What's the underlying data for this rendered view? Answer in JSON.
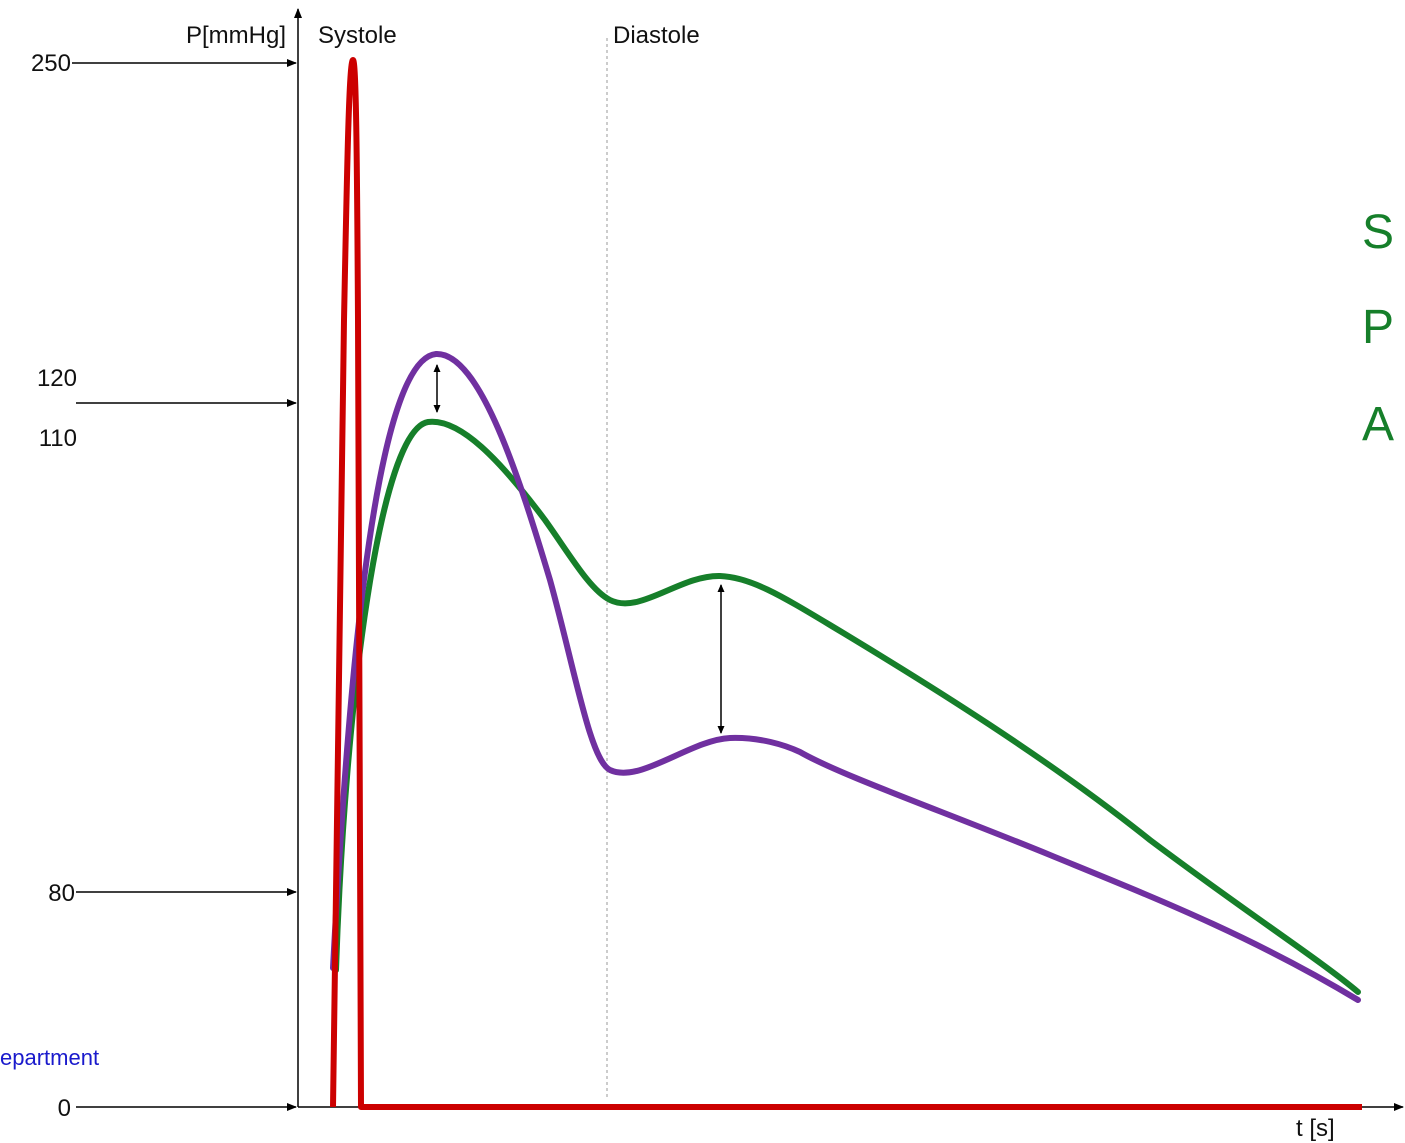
{
  "chart_data": {
    "type": "line",
    "title": "",
    "ylabel": "P[mmHg]",
    "xlabel": "t [s]",
    "phase_labels": [
      "Systole",
      "Diastole"
    ],
    "pressure_ticks": [
      "250",
      "120",
      "110",
      "80",
      "0"
    ],
    "side_label": "epartment",
    "side_letters": [
      "S",
      "P",
      "A"
    ],
    "y_scale": "piecewise (labeled marks 0, 80, 110, 120, 250)",
    "ylim": [
      0,
      250
    ],
    "colors": {
      "red": "#cc0000",
      "green": "#167f2a",
      "purple": "#7030a0",
      "side_label": "#1a1acc",
      "side_letters": "#167f2a"
    }
  }
}
